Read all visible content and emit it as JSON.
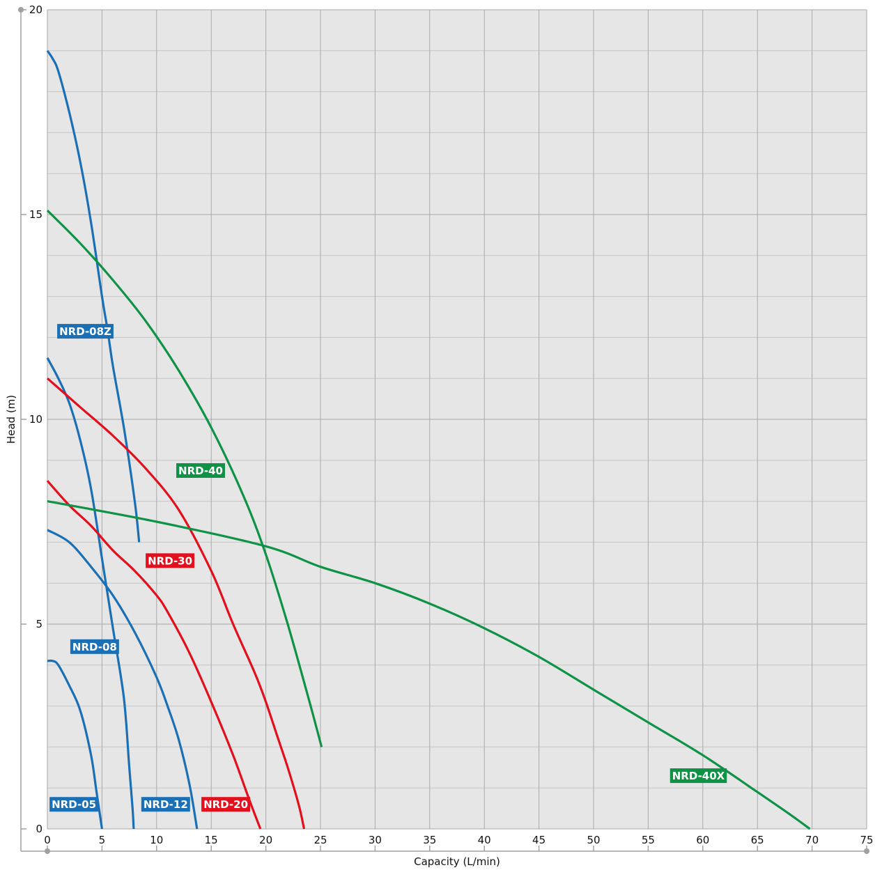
{
  "chart_data": {
    "type": "line",
    "title": "",
    "xlabel": "Capacity (L/min)",
    "ylabel": "Head (m)",
    "xlim": [
      0,
      75
    ],
    "ylim": [
      0,
      20
    ],
    "xticks": [
      0,
      5,
      10,
      15,
      20,
      25,
      30,
      35,
      40,
      45,
      50,
      55,
      60,
      65,
      70,
      75
    ],
    "yticks": [
      0,
      5,
      10,
      15,
      20
    ],
    "minor_y_step": 1,
    "grid": true,
    "legend": "none",
    "series": [
      {
        "name": "NRD-05",
        "color": "#1a6fb5",
        "x": [
          0,
          0.5,
          1,
          2,
          3,
          4,
          4.5,
          5
        ],
        "y": [
          4.1,
          4.1,
          4.0,
          3.5,
          2.9,
          1.8,
          0.9,
          0
        ]
      },
      {
        "name": "NRD-08Z",
        "color": "#1a6fb5",
        "x": [
          0,
          0.5,
          1,
          2,
          3,
          4,
          5,
          5.5,
          6,
          7,
          8,
          8.4
        ],
        "y": [
          19.0,
          18.8,
          18.5,
          17.5,
          16.3,
          14.8,
          13.0,
          12.2,
          11.3,
          9.8,
          8.0,
          7.0
        ]
      },
      {
        "name": "NRD-08",
        "color": "#1a6fb5",
        "x": [
          0,
          1,
          2,
          3,
          4,
          5,
          6,
          7,
          7.5,
          7.8,
          7.9
        ],
        "y": [
          11.5,
          11.0,
          10.4,
          9.5,
          8.3,
          6.6,
          4.9,
          3.2,
          1.5,
          0.5,
          0
        ]
      },
      {
        "name": "NRD-12",
        "color": "#1a6fb5",
        "x": [
          0,
          2,
          4,
          6,
          8,
          10,
          11,
          12,
          13,
          13.7
        ],
        "y": [
          7.3,
          7.0,
          6.4,
          5.7,
          4.8,
          3.7,
          3.0,
          2.2,
          1.1,
          0
        ]
      },
      {
        "name": "NRD-20",
        "color": "#e30f1c",
        "x": [
          0,
          2,
          4,
          6,
          8,
          10,
          11,
          13,
          15,
          17,
          18.5,
          19.5
        ],
        "y": [
          8.5,
          7.9,
          7.4,
          6.8,
          6.3,
          5.7,
          5.3,
          4.3,
          3.1,
          1.8,
          0.7,
          0
        ]
      },
      {
        "name": "NRD-30",
        "color": "#e30f1c",
        "x": [
          0,
          3,
          6,
          9,
          12,
          15,
          17,
          19,
          20,
          21,
          22,
          23,
          23.5
        ],
        "y": [
          11.0,
          10.3,
          9.6,
          8.8,
          7.8,
          6.3,
          5.0,
          3.8,
          3.1,
          2.3,
          1.5,
          0.6,
          0
        ]
      },
      {
        "name": "NRD-40",
        "color": "#0e9346",
        "x": [
          0,
          3,
          6,
          9,
          12,
          15,
          18,
          20,
          22,
          24,
          25.1
        ],
        "y": [
          15.1,
          14.3,
          13.4,
          12.4,
          11.2,
          9.8,
          8.1,
          6.7,
          5.0,
          3.1,
          2.0
        ]
      },
      {
        "name": "NRD-40X",
        "color": "#0e9346",
        "x": [
          0,
          10,
          20,
          25,
          30,
          35,
          40,
          45,
          50,
          55,
          60,
          65,
          68,
          69.8
        ],
        "y": [
          8.0,
          7.5,
          6.9,
          6.4,
          6.0,
          5.5,
          4.9,
          4.2,
          3.4,
          2.6,
          1.8,
          0.9,
          0.35,
          0
        ]
      }
    ],
    "labels": [
      {
        "text": "NRD-08Z",
        "color": "#1a6fb5",
        "x": 0.9,
        "y": 12.15
      },
      {
        "text": "NRD-40",
        "color": "#0e9346",
        "x": 11.8,
        "y": 8.75
      },
      {
        "text": "NRD-30",
        "color": "#e30f1c",
        "x": 9.0,
        "y": 6.55
      },
      {
        "text": "NRD-08",
        "color": "#1a6fb5",
        "x": 2.1,
        "y": 4.45
      },
      {
        "text": "NRD-05",
        "color": "#1a6fb5",
        "x": 0.2,
        "y": 0.6
      },
      {
        "text": "NRD-12",
        "color": "#1a6fb5",
        "x": 8.6,
        "y": 0.6
      },
      {
        "text": "NRD-20",
        "color": "#e30f1c",
        "x": 14.1,
        "y": 0.6
      },
      {
        "text": "NRD-40X",
        "color": "#0e9346",
        "x": 57.0,
        "y": 1.3
      }
    ]
  },
  "colors": {
    "plot_background": "#e6e6e6",
    "major_grid": "#a8a8a8",
    "minor_grid": "#c6c6c6",
    "axis": "#a0a0a0"
  }
}
